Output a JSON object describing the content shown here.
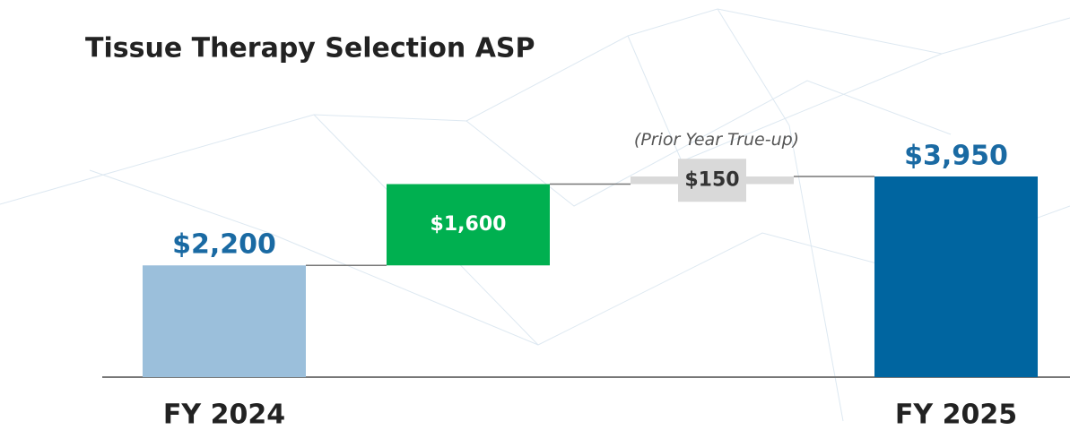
{
  "chart_data": {
    "type": "waterfall",
    "title": "Tissue Therapy Selection ASP",
    "categories": [
      "FY 2024",
      null,
      null,
      "FY 2025"
    ],
    "values": [
      2200,
      1600,
      150,
      3950
    ],
    "value_labels": [
      "$2,200",
      "$1,600",
      "$150",
      "$3,950"
    ],
    "measure": [
      "absolute",
      "relative",
      "relative",
      "total"
    ],
    "colors": [
      "#9bbfdb",
      "#00b050",
      "#d9d9d9",
      "#0065a0"
    ],
    "annotation": "(Prior Year True-up)"
  }
}
